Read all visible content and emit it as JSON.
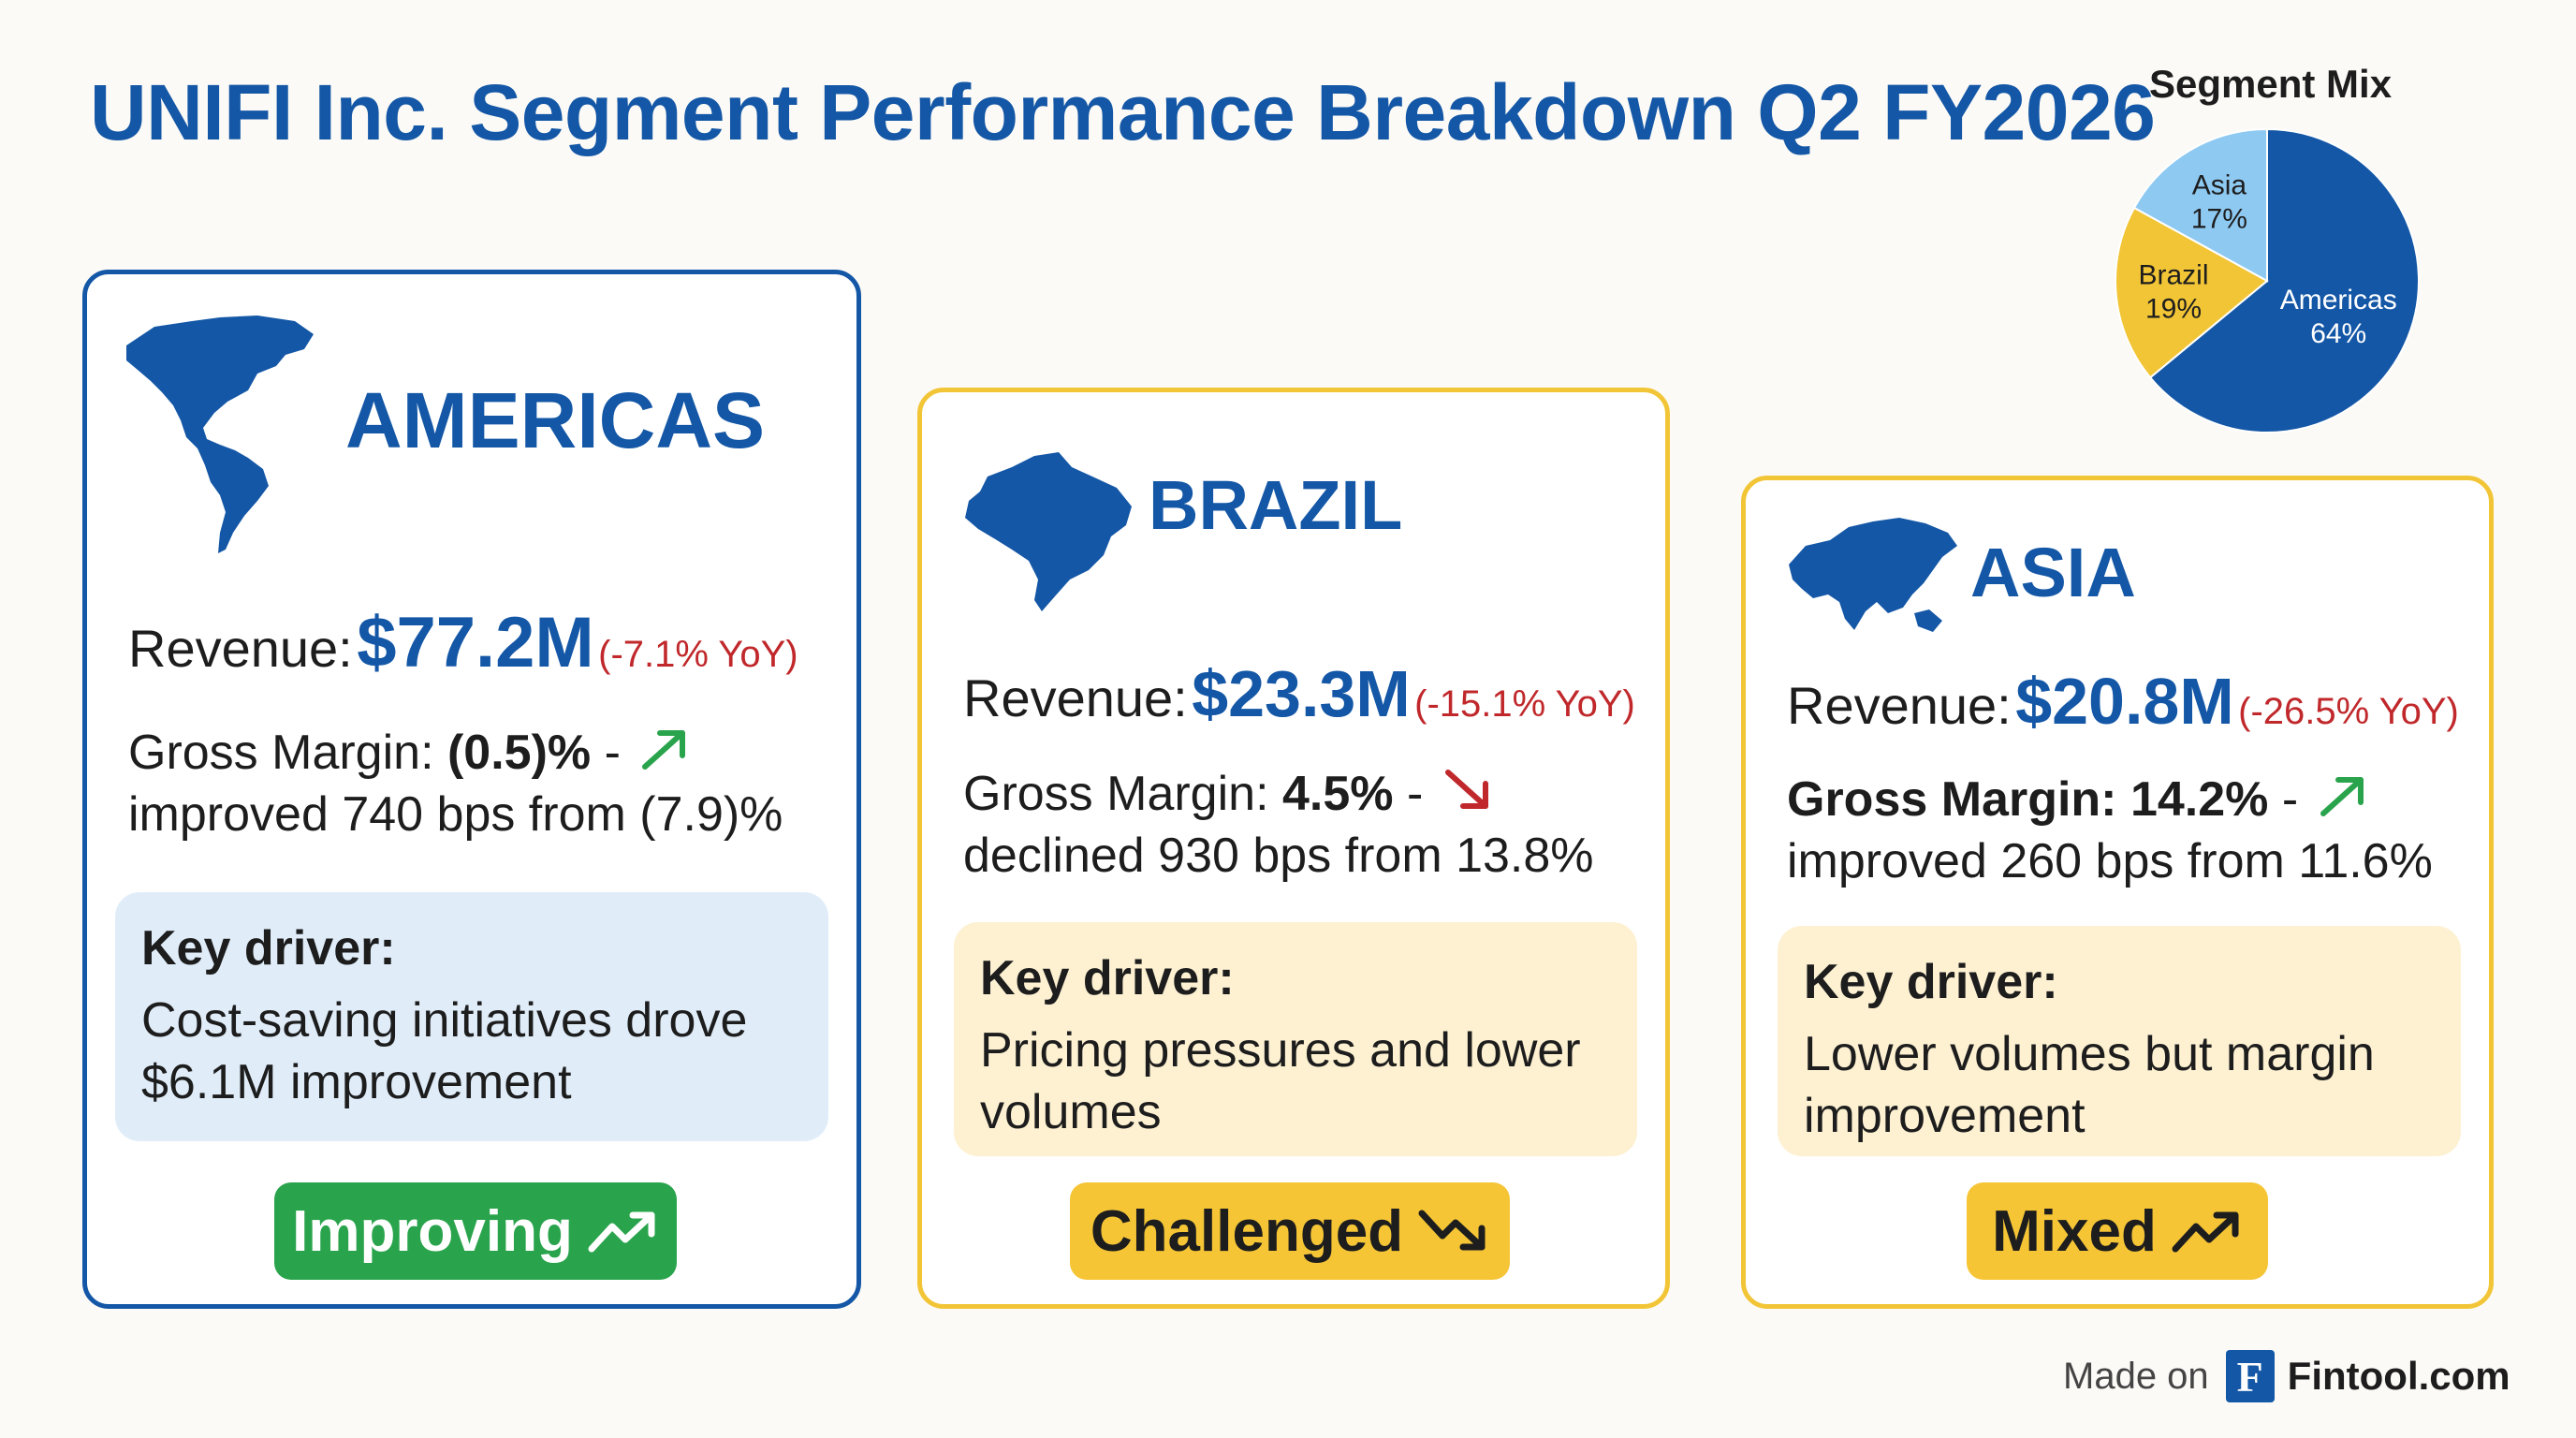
{
  "title": "UNIFI Inc. Segment Performance Breakdown Q2 FY2026",
  "colors": {
    "brand_blue": "#1457a6",
    "light_blue": "#8ec9f2",
    "gold": "#f2c537",
    "green": "#2aa44c",
    "red": "#c0282b"
  },
  "segments": [
    {
      "name": "AMERICAS",
      "map_icon": "americas-map-icon",
      "revenue_label": "Revenue:",
      "revenue_value": "$77.2M",
      "revenue_yoy": "(-7.1% YoY)",
      "gm_label": "Gross Margin:",
      "gm_value": "(0.5)%",
      "gm_sep": " -",
      "gm_trend_icon": "arrow-up-right-icon",
      "gm_change": "improved 740 bps from (7.9)%",
      "driver_title": "Key driver:",
      "driver_text_1": "Cost-saving initiatives drove",
      "driver_text_2": "$6.1M improvement",
      "status": "Improving",
      "status_icon": "trending-up-icon"
    },
    {
      "name": "BRAZIL",
      "map_icon": "brazil-map-icon",
      "revenue_label": "Revenue:",
      "revenue_value": "$23.3M",
      "revenue_yoy": "(-15.1% YoY)",
      "gm_label": "Gross Margin:",
      "gm_value": "4.5%",
      "gm_sep": " -",
      "gm_trend_icon": "arrow-down-right-icon",
      "gm_change": "declined 930 bps from 13.8%",
      "driver_title": "Key driver:",
      "driver_text_1": "Pricing pressures and lower",
      "driver_text_2": "volumes",
      "status": "Challenged",
      "status_icon": "trending-down-icon"
    },
    {
      "name": "ASIA",
      "map_icon": "asia-map-icon",
      "revenue_label": "Revenue:",
      "revenue_value": "$20.8M",
      "revenue_yoy": "(-26.5% YoY)",
      "gm_label": "Gross Margin:",
      "gm_value": "14.2%",
      "gm_sep": " -",
      "gm_trend_icon": "arrow-up-right-icon",
      "gm_change": "improved 260 bps from 11.6%",
      "driver_title": "Key driver:",
      "driver_text_1": "Lower volumes but margin",
      "driver_text_2": "improvement",
      "status": "Mixed",
      "status_icon": "trending-up-icon"
    }
  ],
  "chart_data": {
    "type": "pie",
    "title": "Segment Mix",
    "categories": [
      "Americas",
      "Brazil",
      "Asia"
    ],
    "values": [
      64,
      19,
      17
    ],
    "labels": [
      "64%",
      "19%",
      "17%"
    ],
    "colors": [
      "#1457a6",
      "#f2c537",
      "#8ec9f2"
    ]
  },
  "footer": {
    "made_on": "Made on",
    "logo_letter": "F",
    "brand": "Fintool.com"
  }
}
